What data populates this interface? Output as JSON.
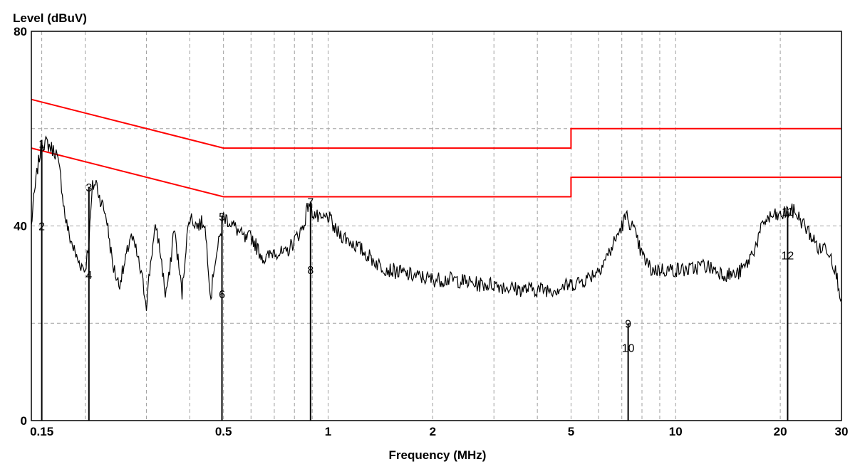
{
  "chart_data": {
    "type": "line",
    "ylabel": "Level (dBuV)",
    "xlabel": "Frequency (MHz)",
    "x_scale": "log",
    "xlim": [
      0.14,
      30
    ],
    "ylim": [
      0,
      80
    ],
    "grid": true,
    "x_tick_labels": [
      {
        "value": 0.15,
        "label": "0.15"
      },
      {
        "value": 0.5,
        "label": "0.5"
      },
      {
        "value": 1,
        "label": "1"
      },
      {
        "value": 2,
        "label": "2"
      },
      {
        "value": 5,
        "label": "5"
      },
      {
        "value": 10,
        "label": "10"
      },
      {
        "value": 20,
        "label": "20"
      },
      {
        "value": 30,
        "label": "30"
      }
    ],
    "x_grid_minor": [
      0.2,
      0.3,
      0.4,
      0.6,
      0.7,
      0.8,
      0.9,
      3,
      4,
      6,
      7,
      8,
      9
    ],
    "y_tick_labels": [
      {
        "value": 0,
        "label": "0"
      },
      {
        "value": 40,
        "label": "40"
      },
      {
        "value": 80,
        "label": "80"
      }
    ],
    "y_grid": [
      20,
      40,
      60
    ],
    "limit_lines": [
      {
        "color": "#ff0000",
        "points": [
          [
            0.14,
            66
          ],
          [
            0.5,
            56
          ],
          [
            5,
            56
          ],
          [
            5,
            60
          ],
          [
            30,
            60
          ]
        ]
      },
      {
        "color": "#ff0000",
        "points": [
          [
            0.14,
            56
          ],
          [
            0.5,
            46
          ],
          [
            5,
            46
          ],
          [
            5,
            50
          ],
          [
            30,
            50
          ]
        ]
      }
    ],
    "trace_color": "#000000",
    "trace": [
      [
        0.14,
        40
      ],
      [
        0.142,
        45
      ],
      [
        0.146,
        52
      ],
      [
        0.15,
        57
      ],
      [
        0.155,
        57
      ],
      [
        0.16,
        56
      ],
      [
        0.165,
        55
      ],
      [
        0.17,
        50
      ],
      [
        0.175,
        42
      ],
      [
        0.18,
        38
      ],
      [
        0.19,
        33
      ],
      [
        0.2,
        31
      ],
      [
        0.205,
        37
      ],
      [
        0.21,
        48
      ],
      [
        0.215,
        49
      ],
      [
        0.22,
        46
      ],
      [
        0.23,
        42
      ],
      [
        0.24,
        32
      ],
      [
        0.25,
        28
      ],
      [
        0.26,
        32
      ],
      [
        0.27,
        38
      ],
      [
        0.28,
        35
      ],
      [
        0.29,
        30
      ],
      [
        0.3,
        24
      ],
      [
        0.31,
        34
      ],
      [
        0.32,
        40
      ],
      [
        0.33,
        34
      ],
      [
        0.34,
        26
      ],
      [
        0.35,
        30
      ],
      [
        0.36,
        40
      ],
      [
        0.37,
        33
      ],
      [
        0.38,
        26
      ],
      [
        0.39,
        36
      ],
      [
        0.4,
        42
      ],
      [
        0.42,
        40
      ],
      [
        0.44,
        41
      ],
      [
        0.45,
        34
      ],
      [
        0.46,
        25
      ],
      [
        0.47,
        32
      ],
      [
        0.49,
        38
      ],
      [
        0.5,
        42
      ],
      [
        0.52,
        41
      ],
      [
        0.55,
        39
      ],
      [
        0.58,
        37
      ],
      [
        0.6,
        38
      ],
      [
        0.63,
        35
      ],
      [
        0.66,
        33
      ],
      [
        0.7,
        35
      ],
      [
        0.75,
        34
      ],
      [
        0.8,
        37
      ],
      [
        0.85,
        40
      ],
      [
        0.88,
        45
      ],
      [
        0.9,
        43
      ],
      [
        0.95,
        41
      ],
      [
        1.0,
        42
      ],
      [
        1.05,
        39
      ],
      [
        1.1,
        38
      ],
      [
        1.2,
        36
      ],
      [
        1.3,
        34
      ],
      [
        1.4,
        32
      ],
      [
        1.5,
        31
      ],
      [
        1.7,
        30
      ],
      [
        2.0,
        29
      ],
      [
        2.3,
        29
      ],
      [
        2.7,
        28
      ],
      [
        3.0,
        28
      ],
      [
        3.5,
        27
      ],
      [
        4.0,
        27
      ],
      [
        4.5,
        27
      ],
      [
        5.0,
        28
      ],
      [
        5.5,
        29
      ],
      [
        6.0,
        31
      ],
      [
        6.5,
        35
      ],
      [
        7.0,
        40
      ],
      [
        7.2,
        42
      ],
      [
        7.5,
        40
      ],
      [
        8.0,
        34
      ],
      [
        8.5,
        31
      ],
      [
        9.0,
        31
      ],
      [
        10,
        31
      ],
      [
        11,
        31
      ],
      [
        12,
        32
      ],
      [
        13,
        31
      ],
      [
        14,
        30
      ],
      [
        15,
        30
      ],
      [
        16,
        32
      ],
      [
        17,
        36
      ],
      [
        18,
        41
      ],
      [
        19,
        42
      ],
      [
        20,
        42
      ],
      [
        21,
        43
      ],
      [
        22,
        43
      ],
      [
        23,
        41
      ],
      [
        24,
        39
      ],
      [
        25,
        37
      ],
      [
        26,
        35
      ],
      [
        27,
        36
      ],
      [
        28,
        34
      ],
      [
        29,
        30
      ],
      [
        30,
        25
      ]
    ],
    "markers": [
      {
        "label": "1",
        "x": 0.15,
        "top": 57
      },
      {
        "label": "2",
        "x": 0.15,
        "top": 40
      },
      {
        "label": "3",
        "x": 0.205,
        "top": 48
      },
      {
        "label": "4",
        "x": 0.205,
        "top": 30
      },
      {
        "label": "5",
        "x": 0.495,
        "top": 42
      },
      {
        "label": "6",
        "x": 0.495,
        "top": 26
      },
      {
        "label": "7",
        "x": 0.89,
        "top": 45
      },
      {
        "label": "8",
        "x": 0.89,
        "top": 31
      },
      {
        "label": "9",
        "x": 7.3,
        "top": 20
      },
      {
        "label": "10",
        "x": 7.3,
        "top": 15
      },
      {
        "label": "11",
        "x": 21,
        "top": 43
      },
      {
        "label": "12",
        "x": 21,
        "top": 34
      }
    ]
  }
}
